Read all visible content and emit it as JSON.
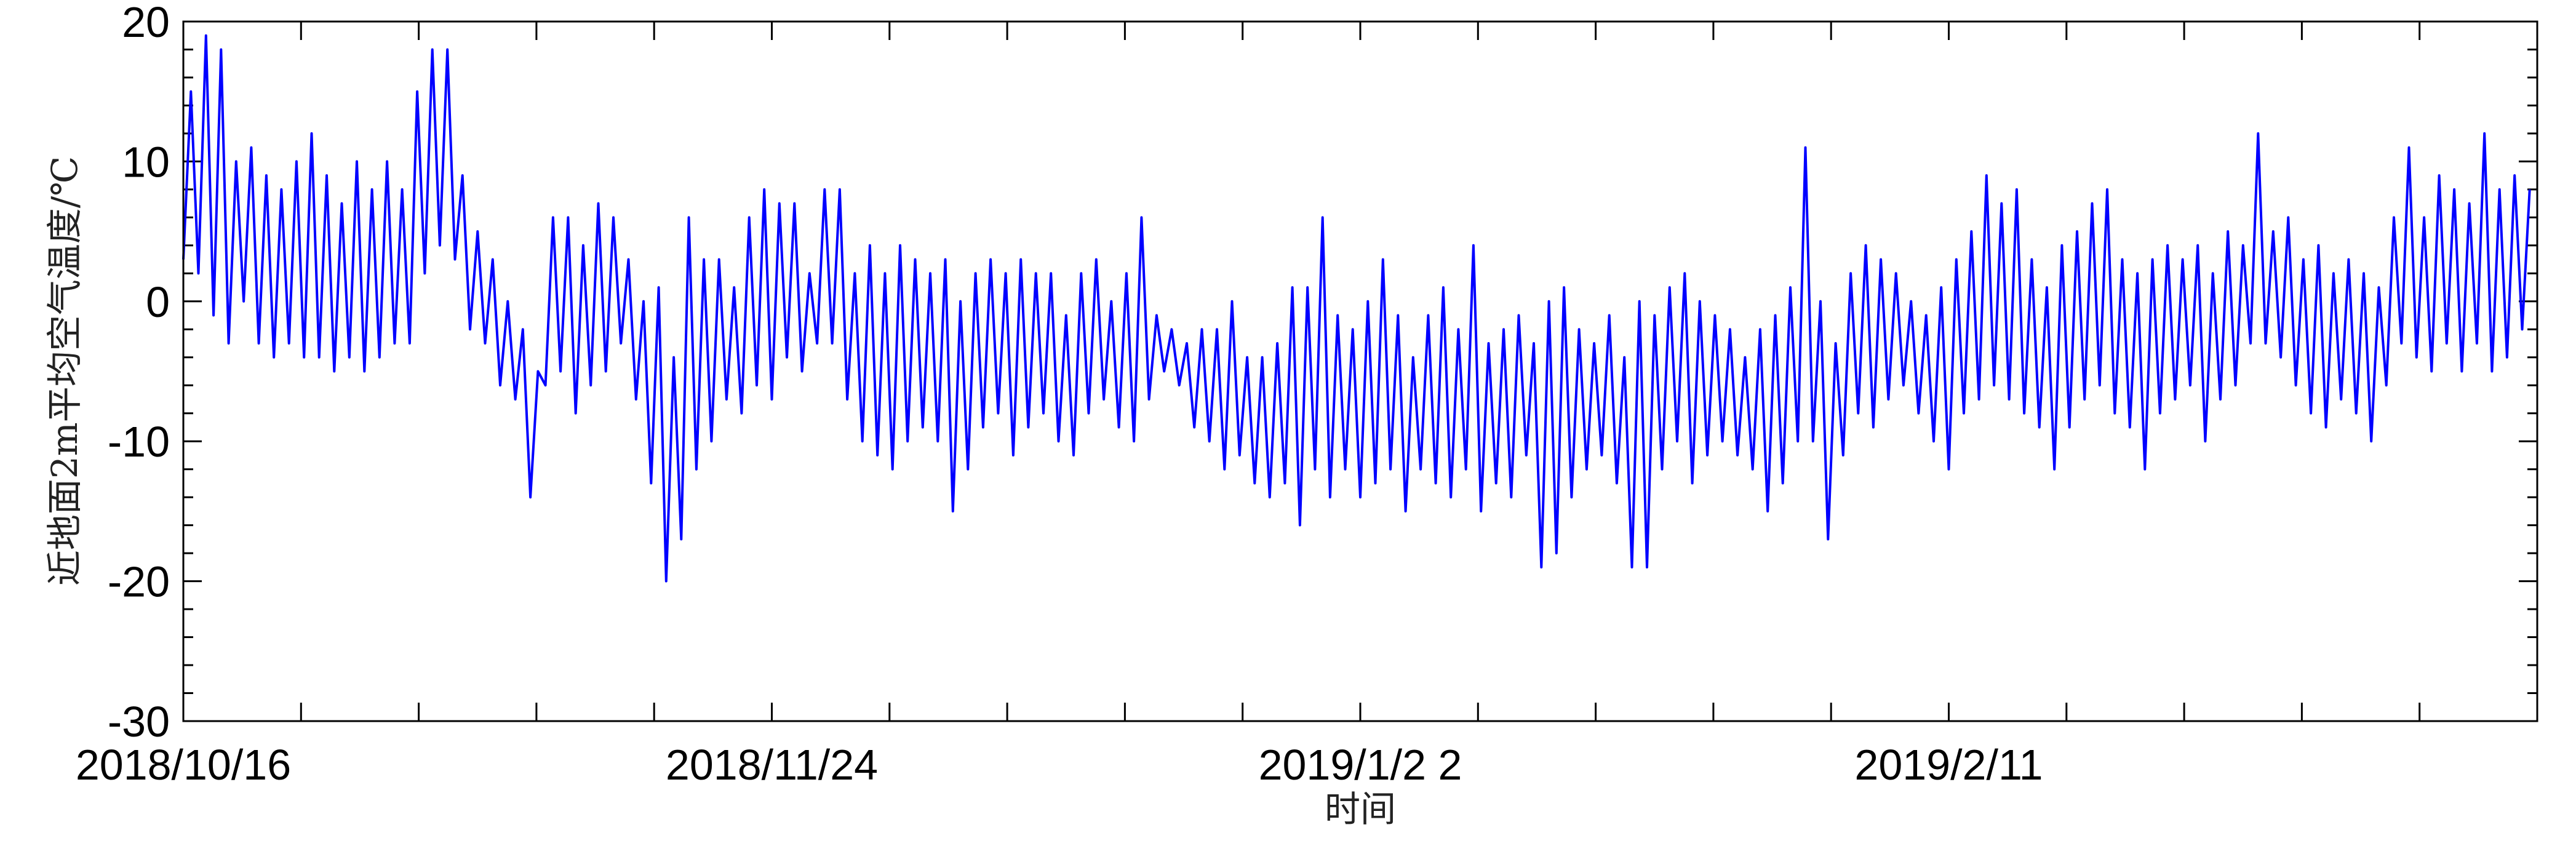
{
  "chart_data": {
    "type": "line",
    "color": "#0000ff",
    "xlabel": "时间",
    "ylabel": "近地面2m平均空气温度/℃",
    "xlim": [
      0,
      156
    ],
    "ylim": [
      -30,
      20
    ],
    "xticks": [
      {
        "value": 0,
        "label": "2018/10/16"
      },
      {
        "value": 39,
        "label": "2018/11/24"
      },
      {
        "value": 78,
        "label": "2019/1/2  2"
      },
      {
        "value": 117,
        "label": "2019/2/11"
      }
    ],
    "xminor_ticks": [
      7.8,
      15.6,
      23.4,
      31.2,
      46.8,
      54.6,
      62.4,
      70.2,
      85.8,
      93.6,
      101.4,
      109.2,
      124.8,
      132.6,
      140.4,
      148.2
    ],
    "yticks": [
      -30,
      -20,
      -10,
      0,
      10,
      20
    ],
    "yminor_ticks": [
      -28,
      -26,
      -24,
      -22,
      -18,
      -16,
      -14,
      -12,
      -8,
      -6,
      -4,
      -2,
      2,
      4,
      6,
      8,
      12,
      14,
      16,
      18
    ],
    "x": [
      0,
      0.5,
      1,
      1.5,
      2,
      2.5,
      3,
      3.5,
      4,
      4.5,
      5,
      5.5,
      6,
      6.5,
      7,
      7.5,
      8,
      8.5,
      9,
      9.5,
      10,
      10.5,
      11,
      11.5,
      12,
      12.5,
      13,
      13.5,
      14,
      14.5,
      15,
      15.5,
      16,
      16.5,
      17,
      17.5,
      18,
      18.5,
      19,
      19.5,
      20,
      20.5,
      21,
      21.5,
      22,
      22.5,
      23,
      23.5,
      24,
      24.5,
      25,
      25.5,
      26,
      26.5,
      27,
      27.5,
      28,
      28.5,
      29,
      29.5,
      30,
      30.5,
      31,
      31.5,
      32,
      32.5,
      33,
      33.5,
      34,
      34.5,
      35,
      35.5,
      36,
      36.5,
      37,
      37.5,
      38,
      38.5,
      39,
      39.5,
      40,
      40.5,
      41,
      41.5,
      42,
      42.5,
      43,
      43.5,
      44,
      44.5,
      45,
      45.5,
      46,
      46.5,
      47,
      47.5,
      48,
      48.5,
      49,
      49.5,
      50,
      50.5,
      51,
      51.5,
      52,
      52.5,
      53,
      53.5,
      54,
      54.5,
      55,
      55.5,
      56,
      56.5,
      57,
      57.5,
      58,
      58.5,
      59,
      59.5,
      60,
      60.5,
      61,
      61.5,
      62,
      62.5,
      63,
      63.5,
      64,
      64.5,
      65,
      65.5,
      66,
      66.5,
      67,
      67.5,
      68,
      68.5,
      69,
      69.5,
      70,
      70.5,
      71,
      71.5,
      72,
      72.5,
      73,
      73.5,
      74,
      74.5,
      75,
      75.5,
      76,
      76.5,
      77,
      77.5,
      78,
      78.5,
      79,
      79.5,
      80,
      80.5,
      81,
      81.5,
      82,
      82.5,
      83,
      83.5,
      84,
      84.5,
      85,
      85.5,
      86,
      86.5,
      87,
      87.5,
      88,
      88.5,
      89,
      89.5,
      90,
      90.5,
      91,
      91.5,
      92,
      92.5,
      93,
      93.5,
      94,
      94.5,
      95,
      95.5,
      96,
      96.5,
      97,
      97.5,
      98,
      98.5,
      99,
      99.5,
      100,
      100.5,
      101,
      101.5,
      102,
      102.5,
      103,
      103.5,
      104,
      104.5,
      105,
      105.5,
      106,
      106.5,
      107,
      107.5,
      108,
      108.5,
      109,
      109.5,
      110,
      110.5,
      111,
      111.5,
      112,
      112.5,
      113,
      113.5,
      114,
      114.5,
      115,
      115.5,
      116,
      116.5,
      117,
      117.5,
      118,
      118.5,
      119,
      119.5,
      120,
      120.5,
      121,
      121.5,
      122,
      122.5,
      123,
      123.5,
      124,
      124.5,
      125,
      125.5,
      126,
      126.5,
      127,
      127.5,
      128,
      128.5,
      129,
      129.5,
      130,
      130.5,
      131,
      131.5,
      132,
      132.5,
      133,
      133.5,
      134,
      134.5,
      135,
      135.5,
      136,
      136.5,
      137,
      137.5,
      138,
      138.5,
      139,
      139.5,
      140,
      140.5,
      141,
      141.5,
      142,
      142.5,
      143,
      143.5,
      144,
      144.5,
      145,
      145.5,
      146,
      146.5,
      147,
      147.5,
      148,
      148.5,
      149,
      149.5,
      150,
      150.5,
      151,
      151.5,
      152,
      152.5,
      153,
      153.5,
      154,
      154.5,
      155,
      155.5
    ],
    "values": [
      3,
      15,
      2,
      19,
      -1,
      18,
      -3,
      10,
      0,
      11,
      -3,
      9,
      -4,
      8,
      -3,
      10,
      -4,
      12,
      -4,
      9,
      -5,
      7,
      -4,
      10,
      -5,
      8,
      -4,
      10,
      -3,
      8,
      -3,
      15,
      2,
      18,
      4,
      18,
      3,
      9,
      -2,
      5,
      -3,
      3,
      -6,
      0,
      -7,
      -2,
      -14,
      -5,
      -6,
      6,
      -5,
      6,
      -8,
      4,
      -6,
      7,
      -5,
      6,
      -3,
      3,
      -7,
      0,
      -13,
      1,
      -20,
      -4,
      -17,
      6,
      -12,
      3,
      -10,
      3,
      -7,
      1,
      -8,
      6,
      -6,
      8,
      -7,
      7,
      -4,
      7,
      -5,
      2,
      -3,
      8,
      -3,
      8,
      -7,
      2,
      -10,
      4,
      -11,
      2,
      -12,
      4,
      -10,
      3,
      -9,
      2,
      -10,
      3,
      -15,
      0,
      -12,
      2,
      -9,
      3,
      -8,
      2,
      -11,
      3,
      -9,
      2,
      -8,
      2,
      -10,
      -1,
      -11,
      2,
      -8,
      3,
      -7,
      0,
      -9,
      2,
      -10,
      6,
      -7,
      -1,
      -5,
      -2,
      -6,
      -3,
      -9,
      -2,
      -10,
      -2,
      -12,
      0,
      -11,
      -4,
      -13,
      -4,
      -14,
      -3,
      -13,
      1,
      -16,
      1,
      -12,
      6,
      -14,
      -1,
      -12,
      -2,
      -14,
      0,
      -13,
      3,
      -12,
      -1,
      -15,
      -4,
      -12,
      -1,
      -13,
      1,
      -14,
      -2,
      -12,
      4,
      -15,
      -3,
      -13,
      -2,
      -14,
      -1,
      -11,
      -3,
      -19,
      0,
      -18,
      1,
      -14,
      -2,
      -12,
      -3,
      -11,
      -1,
      -13,
      -4,
      -19,
      0,
      -19,
      -1,
      -12,
      1,
      -10,
      2,
      -13,
      0,
      -11,
      -1,
      -10,
      -2,
      -11,
      -4,
      -12,
      -2,
      -15,
      -1,
      -13,
      1,
      -10,
      11,
      -10,
      0,
      -17,
      -3,
      -11,
      2,
      -8,
      4,
      -9,
      3,
      -7,
      2,
      -6,
      0,
      -8,
      -1,
      -10,
      1,
      -12,
      3,
      -8,
      5,
      -7,
      9,
      -6,
      7,
      -7,
      8,
      -8,
      3,
      -9,
      1,
      -12,
      4,
      -9,
      5,
      -7,
      7,
      -6,
      8,
      -8,
      3,
      -9,
      2,
      -12,
      3,
      -8,
      4,
      -7,
      3,
      -6,
      4,
      -10,
      2,
      -7,
      5,
      -6,
      4,
      -3,
      12,
      -3,
      5,
      -4,
      6,
      -6,
      3,
      -8,
      4,
      -9,
      2,
      -7,
      3,
      -8,
      2,
      -10,
      1,
      -6,
      6,
      -3,
      11,
      -4,
      6,
      -5,
      9,
      -3,
      8,
      -5,
      7,
      -3,
      12,
      -5,
      8,
      -4,
      9,
      -2,
      8
    ]
  }
}
